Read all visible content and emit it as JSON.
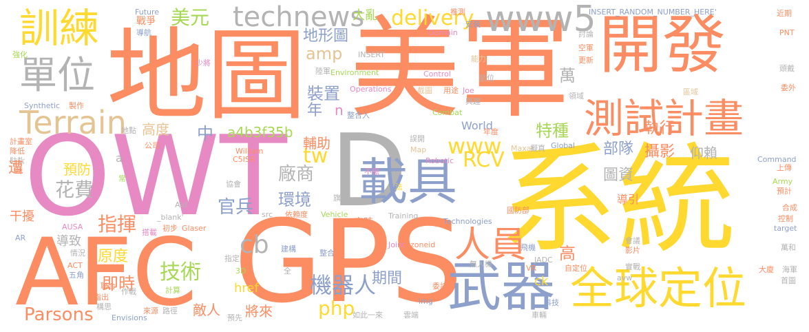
{
  "palette": {
    "orange": "#fc8d62",
    "yellow": "#ffd92f",
    "blue": "#8da0cb",
    "pink": "#e78ac3",
    "green": "#a6d854",
    "tan": "#e5c494",
    "gray": "#b3b3b3"
  },
  "words": [
    {
      "text": "系統",
      "color": "yellow"
    },
    {
      "text": "美軍",
      "color": "orange"
    },
    {
      "text": "開發",
      "color": "orange"
    },
    {
      "text": "地圖",
      "color": "orange"
    },
    {
      "text": "OWT",
      "color": "pink"
    },
    {
      "text": "D",
      "color": "gray"
    },
    {
      "text": "GPS",
      "color": "orange"
    },
    {
      "text": "AFC",
      "color": "orange"
    },
    {
      "text": "載具",
      "color": "blue"
    },
    {
      "text": "武器",
      "color": "blue"
    },
    {
      "text": "全球定位",
      "color": "yellow"
    },
    {
      "text": "測試計畫",
      "color": "orange"
    },
    {
      "text": "訓練",
      "color": "yellow"
    },
    {
      "text": "單位",
      "color": "gray"
    },
    {
      "text": "Terrain",
      "color": "tan"
    },
    {
      "text": "technews",
      "color": "gray"
    },
    {
      "text": "www5",
      "color": "gray"
    },
    {
      "text": "人員",
      "color": "orange"
    },
    {
      "text": "美元",
      "color": "green"
    },
    {
      "text": "delivery",
      "color": "yellow"
    },
    {
      "text": "www",
      "color": "yellow"
    },
    {
      "text": "tw",
      "color": "yellow"
    },
    {
      "text": "RCV",
      "color": "yellow"
    },
    {
      "text": "cb",
      "color": "gray"
    },
    {
      "text": "php",
      "color": "yellow"
    },
    {
      "text": "Parsons",
      "color": "orange"
    },
    {
      "text": "技術",
      "color": "green"
    },
    {
      "text": "機器人",
      "color": "blue"
    },
    {
      "text": "指揮",
      "color": "orange"
    },
    {
      "text": "花費",
      "color": "gray"
    },
    {
      "text": "環境",
      "color": "blue"
    },
    {
      "text": "官兵",
      "color": "blue"
    },
    {
      "text": "廠商",
      "color": "gray"
    },
    {
      "text": "地形圖",
      "color": "blue"
    },
    {
      "text": "amp",
      "color": "tan"
    },
    {
      "text": "大亂",
      "color": "green"
    },
    {
      "text": "Future",
      "color": "blue"
    },
    {
      "text": "戰爭",
      "color": "orange"
    },
    {
      "text": "導航",
      "color": "blue"
    },
    {
      "text": "推測",
      "color": "orange"
    },
    {
      "text": "安裝",
      "color": "blue"
    },
    {
      "text": "INSERT_RANDOM_NUMBER_HERE'",
      "color": "blue"
    },
    {
      "text": "Domain",
      "color": "pink"
    },
    {
      "text": "近期",
      "color": "orange"
    },
    {
      "text": "PNT",
      "color": "orange"
    },
    {
      "text": "頭戴",
      "color": "gray"
    },
    {
      "text": "委外",
      "color": "orange"
    },
    {
      "text": "INSERT",
      "color": "gray"
    },
    {
      "text": "能力",
      "color": "tan"
    },
    {
      "text": "討論",
      "color": "gray"
    },
    {
      "text": "空軍",
      "color": "orange"
    },
    {
      "text": "更新",
      "color": "orange"
    },
    {
      "text": "區域",
      "color": "tan"
    },
    {
      "text": "領域",
      "color": "gray"
    },
    {
      "text": "強化",
      "color": "green"
    },
    {
      "text": "少將",
      "color": "pink"
    },
    {
      "text": "陸軍",
      "color": "gray"
    },
    {
      "text": "Environment",
      "color": "green"
    },
    {
      "text": "Control",
      "color": "pink"
    },
    {
      "text": "航位",
      "color": "gray"
    },
    {
      "text": "用途",
      "color": "orange"
    },
    {
      "text": "Joe",
      "color": "pink"
    },
    {
      "text": "興趣",
      "color": "gray"
    },
    {
      "text": "Operations",
      "color": "pink"
    },
    {
      "text": "截圖",
      "color": "tan"
    },
    {
      "text": "Synthetic",
      "color": "blue"
    },
    {
      "text": "製作",
      "color": "orange"
    },
    {
      "text": "Combat",
      "color": "green"
    },
    {
      "text": "整合入",
      "color": "blue"
    },
    {
      "text": "n",
      "color": "pink"
    },
    {
      "text": "年",
      "color": "blue"
    },
    {
      "text": "萬",
      "color": "gray"
    },
    {
      "text": "裝置",
      "color": "blue"
    },
    {
      "text": "高度",
      "color": "tan"
    },
    {
      "text": "a4b3f35b",
      "color": "green"
    },
    {
      "text": "中",
      "color": "blue"
    },
    {
      "text": "特種",
      "color": "green"
    },
    {
      "text": "部隊",
      "color": "blue"
    },
    {
      "text": "執行",
      "color": "orange"
    },
    {
      "text": "攝影",
      "color": "orange"
    },
    {
      "text": "仰賴",
      "color": "gray"
    },
    {
      "text": "圖資",
      "color": "gray"
    },
    {
      "text": "導引",
      "color": "orange"
    },
    {
      "text": "World",
      "color": "blue"
    },
    {
      "text": "年度",
      "color": "orange"
    },
    {
      "text": "誤開",
      "color": "gray"
    },
    {
      "text": "Maxar",
      "color": "tan"
    },
    {
      "text": "擬真",
      "color": "gray"
    },
    {
      "text": "Global",
      "color": "blue"
    },
    {
      "text": "Command",
      "color": "blue"
    },
    {
      "text": "上傳",
      "color": "orange"
    },
    {
      "text": "Army",
      "color": "green"
    },
    {
      "text": "預計",
      "color": "orange"
    },
    {
      "text": "合成",
      "color": "orange"
    },
    {
      "text": "控制",
      "color": "orange"
    },
    {
      "text": "target",
      "color": "blue"
    },
    {
      "text": "萬和",
      "color": "gray"
    },
    {
      "text": "海軍",
      "color": "gray"
    },
    {
      "text": "首圖",
      "color": "gray"
    },
    {
      "text": "計畫室",
      "color": "orange"
    },
    {
      "text": "降低",
      "color": "orange"
    },
    {
      "text": "駐紮",
      "color": "gray"
    },
    {
      "text": "時",
      "color": "orange"
    },
    {
      "text": "地點",
      "color": "gray"
    },
    {
      "text": "公司",
      "color": "orange"
    },
    {
      "text": "預防",
      "color": "yellow"
    },
    {
      "text": "遭",
      "color": "orange"
    },
    {
      "text": "a",
      "color": "gray"
    },
    {
      "text": "輔助",
      "color": "orange"
    },
    {
      "text": "常",
      "color": "green"
    },
    {
      "text": "C5ISR",
      "color": "orange"
    },
    {
      "text": "William",
      "color": "orange"
    },
    {
      "text": "不需",
      "color": "pink"
    },
    {
      "text": "Map",
      "color": "tan"
    },
    {
      "text": "Robotic",
      "color": "pink"
    },
    {
      "text": "協會",
      "color": "gray"
    },
    {
      "text": "法",
      "color": "yellow"
    },
    {
      "text": "旗下",
      "color": "gray"
    },
    {
      "text": "依賴度",
      "color": "orange"
    },
    {
      "text": "干擾",
      "color": "orange"
    },
    {
      "text": "Aid",
      "color": "gray"
    },
    {
      "text": "src",
      "color": "gray"
    },
    {
      "text": "Vehicle",
      "color": "green"
    },
    {
      "text": "定時",
      "color": "orange"
    },
    {
      "text": "Training",
      "color": "gray"
    },
    {
      "text": "Technologies",
      "color": "blue"
    },
    {
      "text": "國防部",
      "color": "orange"
    },
    {
      "text": "AUSA",
      "color": "pink"
    },
    {
      "text": "Glaser",
      "color": "orange"
    },
    {
      "text": "初步",
      "color": "orange"
    },
    {
      "text": "AR",
      "color": "blue"
    },
    {
      "text": "搭載",
      "color": "pink"
    },
    {
      "text": "_blank'",
      "color": "gray"
    },
    {
      "text": "導致",
      "color": "gray"
    },
    {
      "text": "原度",
      "color": "yellow"
    },
    {
      "text": "即時",
      "color": "orange"
    },
    {
      "text": "期間",
      "color": "blue"
    },
    {
      "text": "建構",
      "color": "blue"
    },
    {
      "text": "整合",
      "color": "blue"
    },
    {
      "text": "Joint",
      "color": "pink"
    },
    {
      "text": "zoneid",
      "color": "orange"
    },
    {
      "text": "高",
      "color": "orange"
    },
    {
      "text": "飛機",
      "color": "blue"
    },
    {
      "text": "JADC",
      "color": "gray"
    },
    {
      "text": "影片",
      "color": "orange"
    },
    {
      "text": "會議",
      "color": "gray"
    },
    {
      "text": "情況",
      "color": "gray"
    },
    {
      "text": "ACT",
      "color": "orange"
    },
    {
      "text": "五角",
      "color": "blue"
    },
    {
      "text": "指定",
      "color": "gray"
    },
    {
      "text": "3D",
      "color": "green"
    },
    {
      "text": "全",
      "color": "gray"
    },
    {
      "text": "代表",
      "color": "orange"
    },
    {
      "text": "無人機",
      "color": "gray"
    },
    {
      "text": "VR",
      "color": "orange"
    },
    {
      "text": "自定位",
      "color": "orange"
    },
    {
      "text": "實戰",
      "color": "gray"
    },
    {
      "text": "avw",
      "color": "gray"
    },
    {
      "text": "大廈",
      "color": "orange"
    },
    {
      "text": "聯合",
      "color": "orange"
    },
    {
      "text": "作戰",
      "color": "gray"
    },
    {
      "text": "計算",
      "color": "green"
    },
    {
      "text": "href",
      "color": "yellow"
    },
    {
      "text": "ck",
      "color": "yellow"
    },
    {
      "text": "委託",
      "color": "orange"
    },
    {
      "text": "img",
      "color": "blue"
    },
    {
      "text": "科技",
      "color": "blue"
    },
    {
      "text": "指出",
      "color": "orange"
    },
    {
      "text": "構思",
      "color": "gray"
    },
    {
      "text": "敵人",
      "color": "orange"
    },
    {
      "text": "將來",
      "color": "orange"
    },
    {
      "text": "Envisions",
      "color": "blue"
    },
    {
      "text": "來源",
      "color": "orange"
    },
    {
      "text": "路徑",
      "color": "gray"
    },
    {
      "text": "預先",
      "color": "gray"
    },
    {
      "text": "如此一來",
      "color": "gray"
    },
    {
      "text": "雲端",
      "color": "gray"
    },
    {
      "text": "車輛",
      "color": "gray"
    }
  ]
}
